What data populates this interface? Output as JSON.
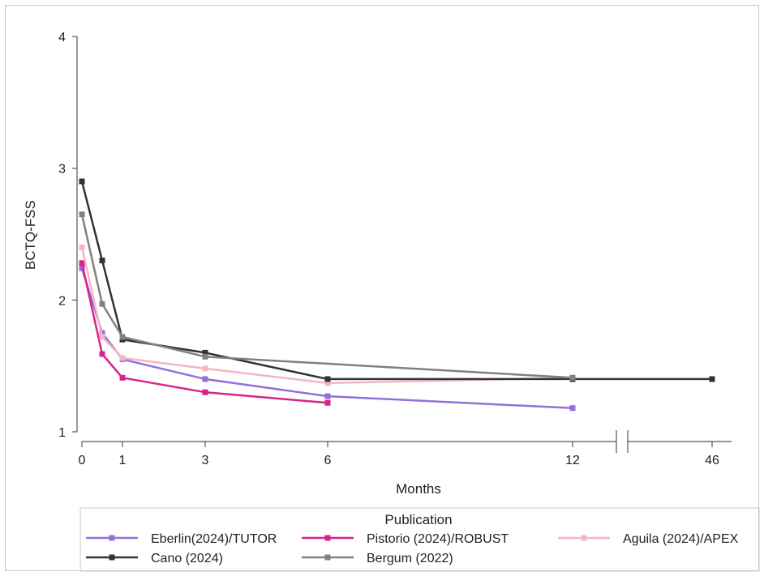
{
  "chart_data": {
    "type": "line",
    "xlabel": "Months",
    "ylabel": "BCTQ-FSS",
    "ylim": [
      1,
      4
    ],
    "yticks": [
      1,
      2,
      3,
      4
    ],
    "xticks": [
      "0",
      "1",
      "3",
      "6",
      "12",
      "46"
    ],
    "axis_break": "between 12 and 46",
    "grid": false,
    "legend": {
      "title": "Publication",
      "placement": "bottom"
    },
    "series": [
      {
        "name": "Eberlin(2024)/TUTOR",
        "color": "#9370db",
        "points": [
          [
            0,
            2.24
          ],
          [
            0.5,
            1.75
          ],
          [
            1,
            1.55
          ],
          [
            3,
            1.4
          ],
          [
            6,
            1.27
          ],
          [
            12,
            1.18
          ]
        ]
      },
      {
        "name": "Pistorio (2024)/ROBUST",
        "color": "#d9228b",
        "points": [
          [
            0,
            2.28
          ],
          [
            0.5,
            1.59
          ],
          [
            1,
            1.41
          ],
          [
            3,
            1.3
          ],
          [
            6,
            1.22
          ]
        ]
      },
      {
        "name": "Aguila (2024)/APEX",
        "color": "#f4b6c2",
        "points": [
          [
            0,
            2.4
          ],
          [
            0.5,
            1.72
          ],
          [
            1,
            1.56
          ],
          [
            3,
            1.48
          ],
          [
            6,
            1.37
          ],
          [
            12,
            1.41
          ]
        ]
      },
      {
        "name": "Cano (2024)",
        "color": "#333333",
        "points": [
          [
            0,
            2.9
          ],
          [
            0.5,
            2.3
          ],
          [
            1,
            1.7
          ],
          [
            3,
            1.6
          ],
          [
            6,
            1.4
          ],
          [
            12,
            1.4
          ],
          [
            46,
            1.4
          ]
        ]
      },
      {
        "name": "Bergum (2022)",
        "color": "#808080",
        "points": [
          [
            0,
            2.65
          ],
          [
            0.5,
            1.97
          ],
          [
            1,
            1.72
          ],
          [
            3,
            1.57
          ],
          [
            12,
            1.41
          ]
        ]
      }
    ]
  }
}
